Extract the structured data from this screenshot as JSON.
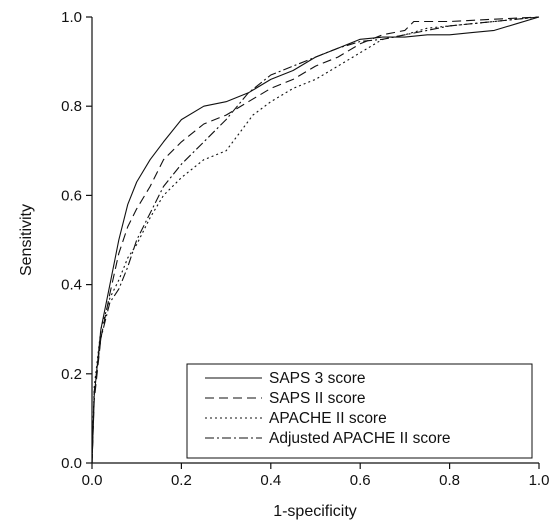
{
  "chart_data": {
    "type": "line",
    "xlabel": "1-specificity",
    "ylabel": "Sensitivity",
    "xlim": [
      0,
      1
    ],
    "ylim": [
      0,
      1
    ],
    "x_ticks": [
      "0.0",
      "0.2",
      "0.4",
      "0.6",
      "0.8",
      "1.0"
    ],
    "y_ticks": [
      "0.0",
      "0.2",
      "0.4",
      "0.6",
      "0.8",
      "1.0"
    ],
    "grid": false,
    "legend_position": "bottom-right",
    "series": [
      {
        "name": "SAPS 3 score",
        "style": "solid",
        "points": [
          [
            0,
            0
          ],
          [
            0.005,
            0.15
          ],
          [
            0.02,
            0.3
          ],
          [
            0.04,
            0.4
          ],
          [
            0.06,
            0.5
          ],
          [
            0.08,
            0.58
          ],
          [
            0.1,
            0.63
          ],
          [
            0.13,
            0.68
          ],
          [
            0.16,
            0.72
          ],
          [
            0.2,
            0.77
          ],
          [
            0.25,
            0.8
          ],
          [
            0.3,
            0.81
          ],
          [
            0.35,
            0.83
          ],
          [
            0.4,
            0.86
          ],
          [
            0.45,
            0.88
          ],
          [
            0.5,
            0.91
          ],
          [
            0.55,
            0.93
          ],
          [
            0.6,
            0.95
          ],
          [
            0.65,
            0.955
          ],
          [
            0.7,
            0.955
          ],
          [
            0.75,
            0.96
          ],
          [
            0.8,
            0.96
          ],
          [
            0.85,
            0.965
          ],
          [
            0.9,
            0.97
          ],
          [
            0.95,
            0.985
          ],
          [
            1,
            1
          ]
        ]
      },
      {
        "name": "SAPS II score",
        "style": "dashed",
        "points": [
          [
            0,
            0
          ],
          [
            0.005,
            0.14
          ],
          [
            0.02,
            0.28
          ],
          [
            0.04,
            0.38
          ],
          [
            0.06,
            0.47
          ],
          [
            0.08,
            0.53
          ],
          [
            0.1,
            0.57
          ],
          [
            0.13,
            0.62
          ],
          [
            0.16,
            0.68
          ],
          [
            0.2,
            0.72
          ],
          [
            0.25,
            0.76
          ],
          [
            0.3,
            0.78
          ],
          [
            0.35,
            0.81
          ],
          [
            0.4,
            0.84
          ],
          [
            0.45,
            0.86
          ],
          [
            0.5,
            0.89
          ],
          [
            0.55,
            0.91
          ],
          [
            0.6,
            0.94
          ],
          [
            0.65,
            0.96
          ],
          [
            0.7,
            0.97
          ],
          [
            0.72,
            0.99
          ],
          [
            0.75,
            0.99
          ],
          [
            0.8,
            0.99
          ],
          [
            0.9,
            0.995
          ],
          [
            1,
            1
          ]
        ]
      },
      {
        "name": "APACHE II score",
        "style": "dotted",
        "points": [
          [
            0,
            0
          ],
          [
            0.005,
            0.17
          ],
          [
            0.02,
            0.3
          ],
          [
            0.04,
            0.37
          ],
          [
            0.06,
            0.41
          ],
          [
            0.08,
            0.46
          ],
          [
            0.1,
            0.49
          ],
          [
            0.13,
            0.55
          ],
          [
            0.16,
            0.6
          ],
          [
            0.2,
            0.64
          ],
          [
            0.25,
            0.68
          ],
          [
            0.3,
            0.7
          ],
          [
            0.33,
            0.74
          ],
          [
            0.36,
            0.78
          ],
          [
            0.4,
            0.81
          ],
          [
            0.45,
            0.84
          ],
          [
            0.5,
            0.86
          ],
          [
            0.55,
            0.89
          ],
          [
            0.6,
            0.92
          ],
          [
            0.65,
            0.95
          ],
          [
            0.7,
            0.96
          ],
          [
            0.75,
            0.975
          ],
          [
            0.8,
            0.98
          ],
          [
            0.85,
            0.985
          ],
          [
            0.9,
            0.99
          ],
          [
            0.95,
            0.995
          ],
          [
            1,
            1
          ]
        ]
      },
      {
        "name": "Adjusted APACHE II score",
        "style": "dashdot",
        "points": [
          [
            0,
            0
          ],
          [
            0.005,
            0.16
          ],
          [
            0.02,
            0.28
          ],
          [
            0.04,
            0.36
          ],
          [
            0.06,
            0.39
          ],
          [
            0.08,
            0.44
          ],
          [
            0.1,
            0.5
          ],
          [
            0.13,
            0.56
          ],
          [
            0.16,
            0.62
          ],
          [
            0.2,
            0.67
          ],
          [
            0.25,
            0.72
          ],
          [
            0.3,
            0.77
          ],
          [
            0.35,
            0.83
          ],
          [
            0.4,
            0.87
          ],
          [
            0.45,
            0.89
          ],
          [
            0.5,
            0.91
          ],
          [
            0.55,
            0.93
          ],
          [
            0.6,
            0.945
          ],
          [
            0.65,
            0.95
          ],
          [
            0.7,
            0.96
          ],
          [
            0.75,
            0.97
          ],
          [
            0.8,
            0.98
          ],
          [
            0.85,
            0.985
          ],
          [
            0.9,
            0.99
          ],
          [
            0.95,
            0.995
          ],
          [
            1,
            1
          ]
        ]
      }
    ]
  }
}
